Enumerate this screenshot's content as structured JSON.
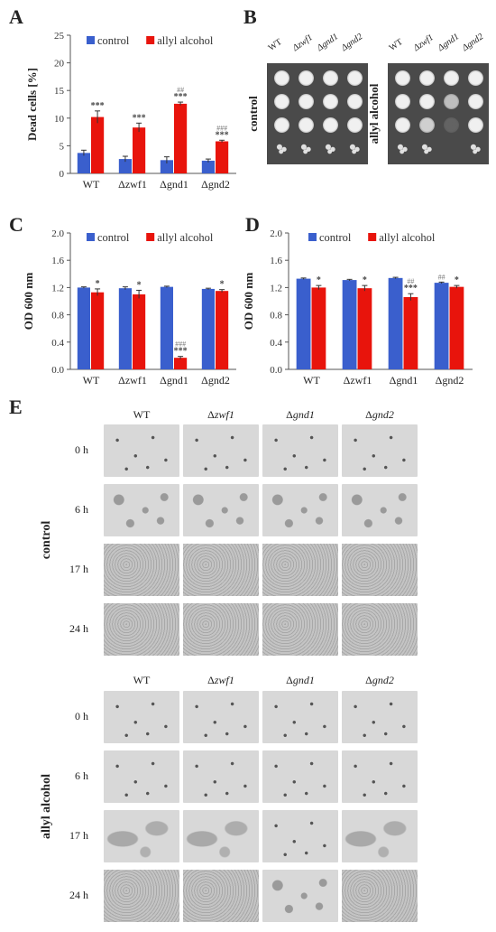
{
  "panel_letters": [
    "A",
    "B",
    "C",
    "D",
    "E"
  ],
  "colors": {
    "control": "#3a5fcd",
    "allyl": "#e8140c",
    "axis": "#555555"
  },
  "chart_data": [
    {
      "id": "A",
      "type": "bar",
      "categories": [
        "WT",
        "Δzwf1",
        "Δgnd1",
        "Δgnd2"
      ],
      "series": [
        {
          "name": "control",
          "values": [
            3.7,
            2.6,
            2.4,
            2.3
          ],
          "errors": [
            0.5,
            0.5,
            0.6,
            0.3
          ],
          "marks": [
            "",
            "",
            "",
            ""
          ]
        },
        {
          "name": "allyl alcohol",
          "values": [
            10.2,
            8.3,
            12.6,
            5.8
          ],
          "errors": [
            1.1,
            0.8,
            0.3,
            0.2
          ],
          "marks": [
            "***",
            "***",
            "***",
            "***"
          ],
          "hash": [
            "",
            "",
            "##",
            "###"
          ]
        }
      ],
      "ylabel": "Dead cells [%]",
      "ylim": [
        0,
        25
      ],
      "yticks": [
        "0",
        "5",
        "10",
        "15",
        "20",
        "25"
      ],
      "legend": "top"
    },
    {
      "id": "C",
      "type": "bar",
      "categories": [
        "WT",
        "Δzwf1",
        "Δgnd1",
        "Δgnd2"
      ],
      "series": [
        {
          "name": "control",
          "values": [
            1.2,
            1.19,
            1.21,
            1.18
          ],
          "errors": [
            0.01,
            0.02,
            0.01,
            0.01
          ],
          "marks": [
            "",
            "",
            "",
            ""
          ]
        },
        {
          "name": "allyl alcohol",
          "values": [
            1.13,
            1.1,
            0.17,
            1.15
          ],
          "errors": [
            0.05,
            0.06,
            0.02,
            0.02
          ],
          "marks": [
            "*",
            "*",
            "***",
            "*"
          ],
          "hash": [
            "",
            "",
            "###",
            ""
          ]
        }
      ],
      "ylabel": "OD 600 nm",
      "ylim": [
        0,
        2.0
      ],
      "yticks": [
        "0.0",
        "0.4",
        "0.8",
        "1.2",
        "1.6",
        "2.0"
      ],
      "legend": "top"
    },
    {
      "id": "D",
      "type": "bar",
      "categories": [
        "WT",
        "Δzwf1",
        "Δgnd1",
        "Δgnd2"
      ],
      "series": [
        {
          "name": "control",
          "values": [
            1.33,
            1.31,
            1.34,
            1.27
          ],
          "errors": [
            0.01,
            0.01,
            0.01,
            0.01
          ],
          "marks": [
            "",
            "",
            "",
            ""
          ],
          "hash": [
            "",
            "",
            "",
            "##"
          ]
        },
        {
          "name": "allyl alcohol",
          "values": [
            1.2,
            1.19,
            1.06,
            1.21
          ],
          "errors": [
            0.03,
            0.04,
            0.05,
            0.02
          ],
          "marks": [
            "*",
            "*",
            "***",
            "*"
          ],
          "hash": [
            "",
            "",
            "##",
            ""
          ]
        }
      ],
      "ylabel": "OD 600 nm",
      "ylim": [
        0,
        2.0
      ],
      "yticks": [
        "0.0",
        "0.4",
        "0.8",
        "1.2",
        "1.6",
        "2.0"
      ],
      "legend": "top"
    }
  ],
  "panel_b": {
    "columns": [
      "WT",
      "Δzwf1",
      "Δgnd1",
      "Δgnd2"
    ],
    "plates": [
      {
        "label": "control",
        "growth": [
          [
            1,
            1,
            1,
            1
          ],
          [
            1,
            1,
            1,
            1
          ],
          [
            1,
            1,
            1,
            1
          ],
          [
            0.6,
            0.6,
            0.6,
            0.6
          ]
        ]
      },
      {
        "label": "allyl alcohol",
        "growth": [
          [
            1,
            1,
            1,
            1
          ],
          [
            1,
            1,
            0.7,
            1
          ],
          [
            1,
            0.8,
            0.15,
            1
          ],
          [
            0.6,
            0.6,
            0,
            0.6
          ]
        ]
      }
    ]
  },
  "panel_e": {
    "columns": [
      {
        "prefix": "",
        "name": "WT"
      },
      {
        "prefix": "Δ",
        "name": "zwf1"
      },
      {
        "prefix": "Δ",
        "name": "gnd1"
      },
      {
        "prefix": "Δ",
        "name": "gnd2"
      }
    ],
    "groups": [
      {
        "label": "control",
        "times": [
          "0 h",
          "6 h",
          "17 h",
          "24 h"
        ]
      },
      {
        "label": "allyl alcohol",
        "times": [
          "0 h",
          "6 h",
          "17 h",
          "24 h"
        ]
      }
    ]
  }
}
